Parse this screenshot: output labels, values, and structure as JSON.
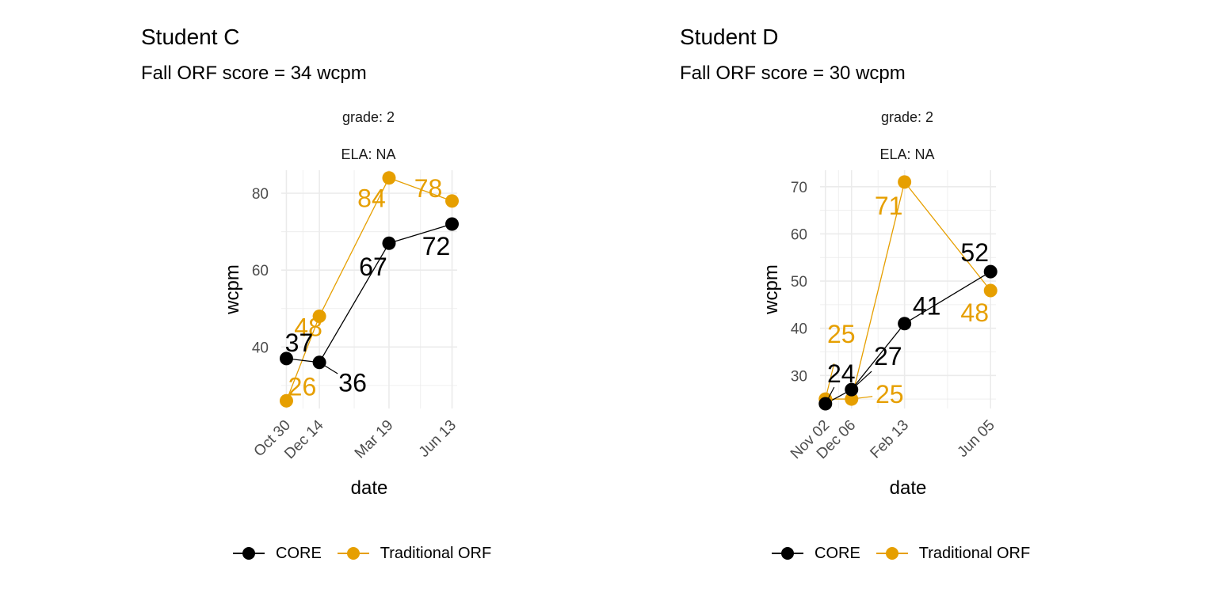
{
  "colors": {
    "core": "#000000",
    "traditional": "#E69F00",
    "grid": "#ebebeb",
    "axis_text": "#4d4d4d"
  },
  "legend": {
    "core_label": "CORE",
    "traditional_label": "Traditional ORF"
  },
  "chart_data": [
    {
      "type": "line",
      "title": "Student C",
      "subtitle": "Fall ORF score = 34 wcpm",
      "facet_labels": [
        "grade: 2",
        "ELA: NA"
      ],
      "xlabel": "date",
      "ylabel": "wcpm",
      "x_ticks": [
        "2018-10-30",
        "2018-12-14",
        "2019-03-19",
        "2019-06-13"
      ],
      "x_tick_labels": [
        "Oct 30",
        "Dec 14",
        "Mar 19",
        "Jun 13"
      ],
      "xlim": [
        "2018-10-23",
        "2019-06-20"
      ],
      "y_ticks": [
        40,
        60,
        80
      ],
      "ylim": [
        24,
        86
      ],
      "series": [
        {
          "name": "CORE",
          "points": [
            {
              "x": "2018-10-30",
              "y": 37,
              "label": "37"
            },
            {
              "x": "2018-12-14",
              "y": 36,
              "label": "36"
            },
            {
              "x": "2019-03-19",
              "y": 67,
              "label": "67"
            },
            {
              "x": "2019-06-13",
              "y": 72,
              "label": "72"
            }
          ]
        },
        {
          "name": "Traditional ORF",
          "points": [
            {
              "x": "2018-10-30",
              "y": 26,
              "label": "26"
            },
            {
              "x": "2018-12-14",
              "y": 48,
              "label": "48"
            },
            {
              "x": "2019-03-19",
              "y": 84,
              "label": "84"
            },
            {
              "x": "2019-06-13",
              "y": 78,
              "label": "78"
            }
          ]
        }
      ]
    },
    {
      "type": "line",
      "title": "Student D",
      "subtitle": "Fall ORF score = 30 wcpm",
      "facet_labels": [
        "grade: 2",
        "ELA: NA"
      ],
      "xlabel": "date",
      "ylabel": "wcpm",
      "x_ticks": [
        "2018-11-02",
        "2018-12-06",
        "2019-02-13",
        "2019-06-05"
      ],
      "x_tick_labels": [
        "Nov 02",
        "Dec 06",
        "Feb 13",
        "Jun 05"
      ],
      "xlim": [
        "2018-10-26",
        "2019-06-12"
      ],
      "y_ticks": [
        30,
        40,
        50,
        60,
        70
      ],
      "ylim": [
        23,
        73.5
      ],
      "series": [
        {
          "name": "CORE",
          "points": [
            {
              "x": "2018-11-02",
              "y": 24,
              "label": "24"
            },
            {
              "x": "2018-12-06",
              "y": 27,
              "label": "27"
            },
            {
              "x": "2019-02-13",
              "y": 41,
              "label": "41"
            },
            {
              "x": "2019-06-05",
              "y": 52,
              "label": "52"
            }
          ]
        },
        {
          "name": "Traditional ORF",
          "points": [
            {
              "x": "2018-11-02",
              "y": 25,
              "label": "25"
            },
            {
              "x": "2018-12-06",
              "y": 25,
              "label": "25"
            },
            {
              "x": "2019-02-13",
              "y": 71,
              "label": "71"
            },
            {
              "x": "2019-06-05",
              "y": 48,
              "label": "48"
            }
          ]
        }
      ]
    }
  ]
}
